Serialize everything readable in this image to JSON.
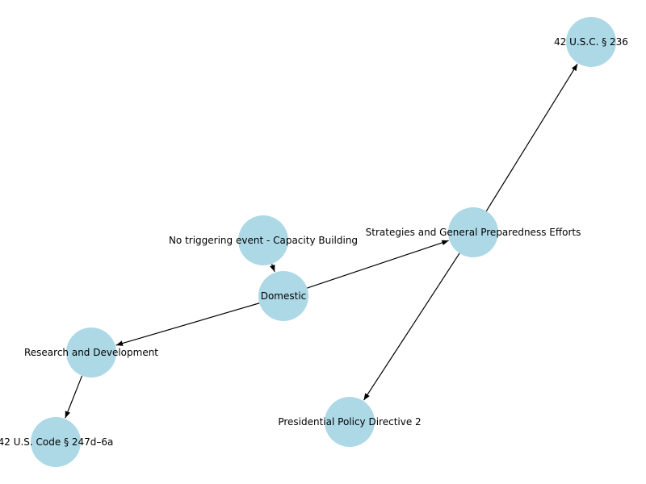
{
  "graph": {
    "nodes": [
      {
        "id": "n1",
        "label": "42 U.S.C. § 236"
      },
      {
        "id": "n2",
        "label": "Strategies and General Preparedness Efforts"
      },
      {
        "id": "n3",
        "label": "No triggering event - Capacity Building"
      },
      {
        "id": "n4",
        "label": "Domestic"
      },
      {
        "id": "n5",
        "label": "Research and Development"
      },
      {
        "id": "n6",
        "label": "42 U.S. Code § 247d–6a"
      },
      {
        "id": "n7",
        "label": "Presidential Policy Directive 2"
      }
    ],
    "edges": [
      {
        "from": "n3",
        "to": "n4"
      },
      {
        "from": "n4",
        "to": "n2"
      },
      {
        "from": "n4",
        "to": "n5"
      },
      {
        "from": "n2",
        "to": "n1"
      },
      {
        "from": "n2",
        "to": "n7"
      },
      {
        "from": "n5",
        "to": "n6"
      }
    ],
    "colors": {
      "node": "#add8e6",
      "edge": "#000000",
      "text": "#000000"
    }
  }
}
